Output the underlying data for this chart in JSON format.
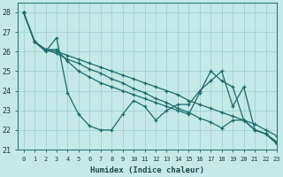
{
  "background_color": "#c5e8e8",
  "grid_color": "#9ecece",
  "line_color": "#1a6b6b",
  "xlabel": "Humidex (Indice chaleur)",
  "xlim": [
    -0.5,
    23
  ],
  "ylim": [
    21,
    28.5
  ],
  "yticks": [
    21,
    22,
    23,
    24,
    25,
    26,
    27,
    28
  ],
  "xticks": [
    0,
    1,
    2,
    3,
    4,
    5,
    6,
    7,
    8,
    9,
    10,
    11,
    12,
    13,
    14,
    15,
    16,
    17,
    18,
    19,
    20,
    21,
    22,
    23
  ],
  "series": [
    [
      28.0,
      26.5,
      26.0,
      26.7,
      23.9,
      22.8,
      22.2,
      22.0,
      22.0,
      22.8,
      23.5,
      23.2,
      22.5,
      23.0,
      23.3,
      23.3,
      24.0,
      24.5,
      25.0,
      23.2,
      24.2,
      22.0,
      21.8,
      21.3
    ],
    [
      28.0,
      26.5,
      26.1,
      26.0,
      25.8,
      25.6,
      25.4,
      25.2,
      25.0,
      24.8,
      24.6,
      24.4,
      24.2,
      24.0,
      23.8,
      23.5,
      23.3,
      23.1,
      22.9,
      22.7,
      22.5,
      22.3,
      22.0,
      21.7
    ],
    [
      28.0,
      26.5,
      26.1,
      25.9,
      25.6,
      25.4,
      25.1,
      24.9,
      24.6,
      24.4,
      24.1,
      23.9,
      23.6,
      23.4,
      23.1,
      22.9,
      22.6,
      22.4,
      22.1,
      22.5,
      22.5,
      22.0,
      21.8,
      21.4
    ],
    [
      28.0,
      26.5,
      26.1,
      26.1,
      25.5,
      25.0,
      24.7,
      24.4,
      24.2,
      24.0,
      23.8,
      23.6,
      23.4,
      23.2,
      23.0,
      22.8,
      23.9,
      25.0,
      24.5,
      24.2,
      22.5,
      22.0,
      21.8,
      21.3
    ]
  ]
}
